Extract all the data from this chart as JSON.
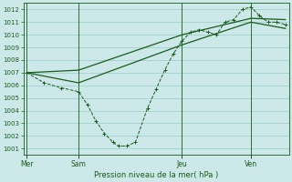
{
  "background_color": "#cce8e8",
  "grid_color": "#99cccc",
  "line_color": "#1a5c1a",
  "xlabel_text": "Pression niveau de la mer( hPa )",
  "ylim": [
    1000.5,
    1012.5
  ],
  "yticks": [
    1001,
    1002,
    1003,
    1004,
    1005,
    1006,
    1007,
    1008,
    1009,
    1010,
    1011,
    1012
  ],
  "day_labels": [
    "Mer",
    "Sam",
    "Jeu",
    "Ven"
  ],
  "day_positions": [
    0,
    3,
    9,
    13
  ],
  "xlim": [
    -0.2,
    15.2
  ],
  "line1_x": [
    0,
    1.0,
    2.0,
    3.0,
    3.5,
    4.0,
    4.5,
    5.0,
    5.3,
    5.8,
    6.3,
    7.0,
    7.5,
    8.0,
    8.5,
    9.0,
    9.5,
    10.0,
    10.5,
    11.0,
    11.5,
    12.0,
    12.5,
    13.0,
    13.5,
    14.0,
    14.5,
    15.0
  ],
  "line1_y": [
    1007.0,
    1006.2,
    1005.8,
    1005.5,
    1004.5,
    1003.2,
    1002.2,
    1001.5,
    1001.2,
    1001.2,
    1001.5,
    1004.2,
    1005.7,
    1007.2,
    1008.5,
    1009.5,
    1010.2,
    1010.4,
    1010.2,
    1010.0,
    1011.0,
    1011.2,
    1012.0,
    1012.2,
    1011.5,
    1011.0,
    1011.0,
    1010.8
  ],
  "line2_x": [
    0,
    3,
    9,
    13,
    15
  ],
  "line2_y": [
    1007.0,
    1006.2,
    1009.2,
    1011.0,
    1010.5
  ],
  "line3_x": [
    0,
    3,
    9,
    13,
    15
  ],
  "line3_y": [
    1007.0,
    1007.2,
    1010.0,
    1011.3,
    1011.2
  ],
  "figsize": [
    3.2,
    2.0
  ],
  "dpi": 100
}
